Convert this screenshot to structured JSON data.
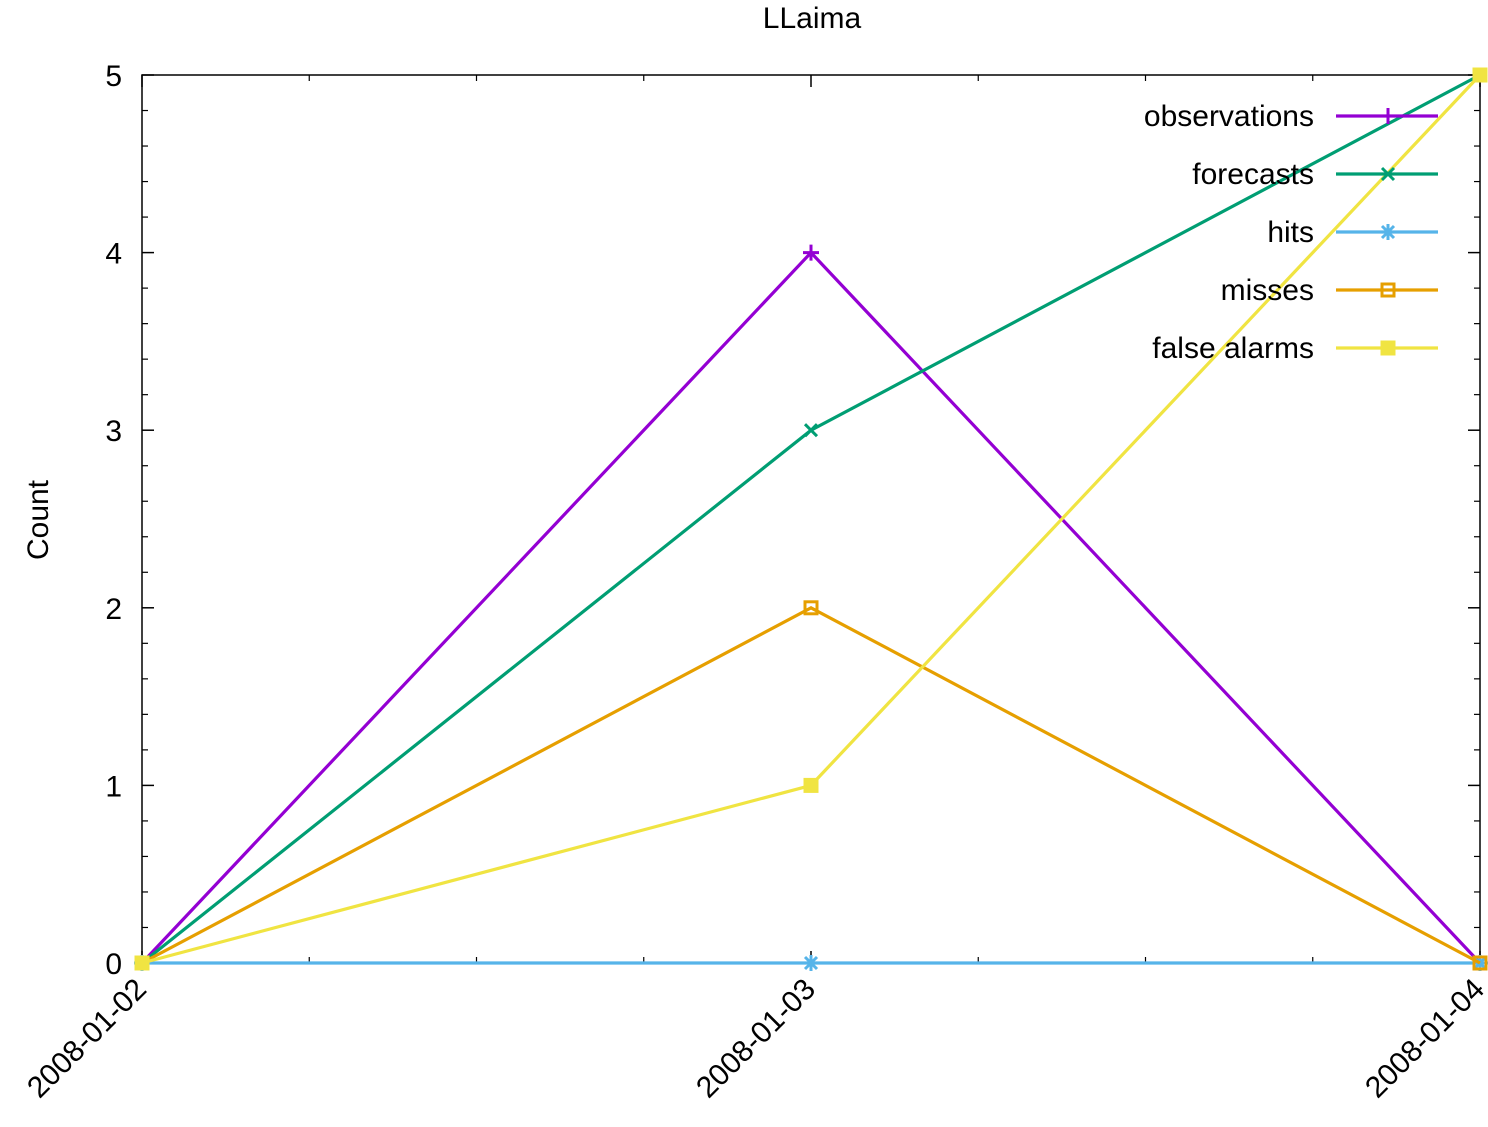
{
  "chart_data": {
    "type": "line",
    "title": "LLaima",
    "xlabel": "",
    "ylabel": "Count",
    "x": [
      "2008-01-02",
      "2008-01-03",
      "2008-01-04"
    ],
    "xlim": [
      "2008-01-02",
      "2008-01-04"
    ],
    "ylim": [
      0,
      5
    ],
    "yticks": [
      "0",
      "1",
      "2",
      "3",
      "4",
      "5"
    ],
    "grid": false,
    "legend_position": "top-right",
    "series": [
      {
        "name": "observations",
        "values": [
          0,
          4,
          0
        ],
        "color": "#9400d3",
        "marker": "plus"
      },
      {
        "name": "forecasts",
        "values": [
          0,
          3,
          5
        ],
        "color": "#009e73",
        "marker": "cross"
      },
      {
        "name": "hits",
        "values": [
          0,
          0,
          0
        ],
        "color": "#56b4e9",
        "marker": "star"
      },
      {
        "name": "misses",
        "values": [
          0,
          2,
          0
        ],
        "color": "#e69f00",
        "marker": "open-square"
      },
      {
        "name": "false alarms",
        "values": [
          0,
          1,
          5
        ],
        "color": "#f0e442",
        "marker": "filled-square"
      }
    ]
  }
}
